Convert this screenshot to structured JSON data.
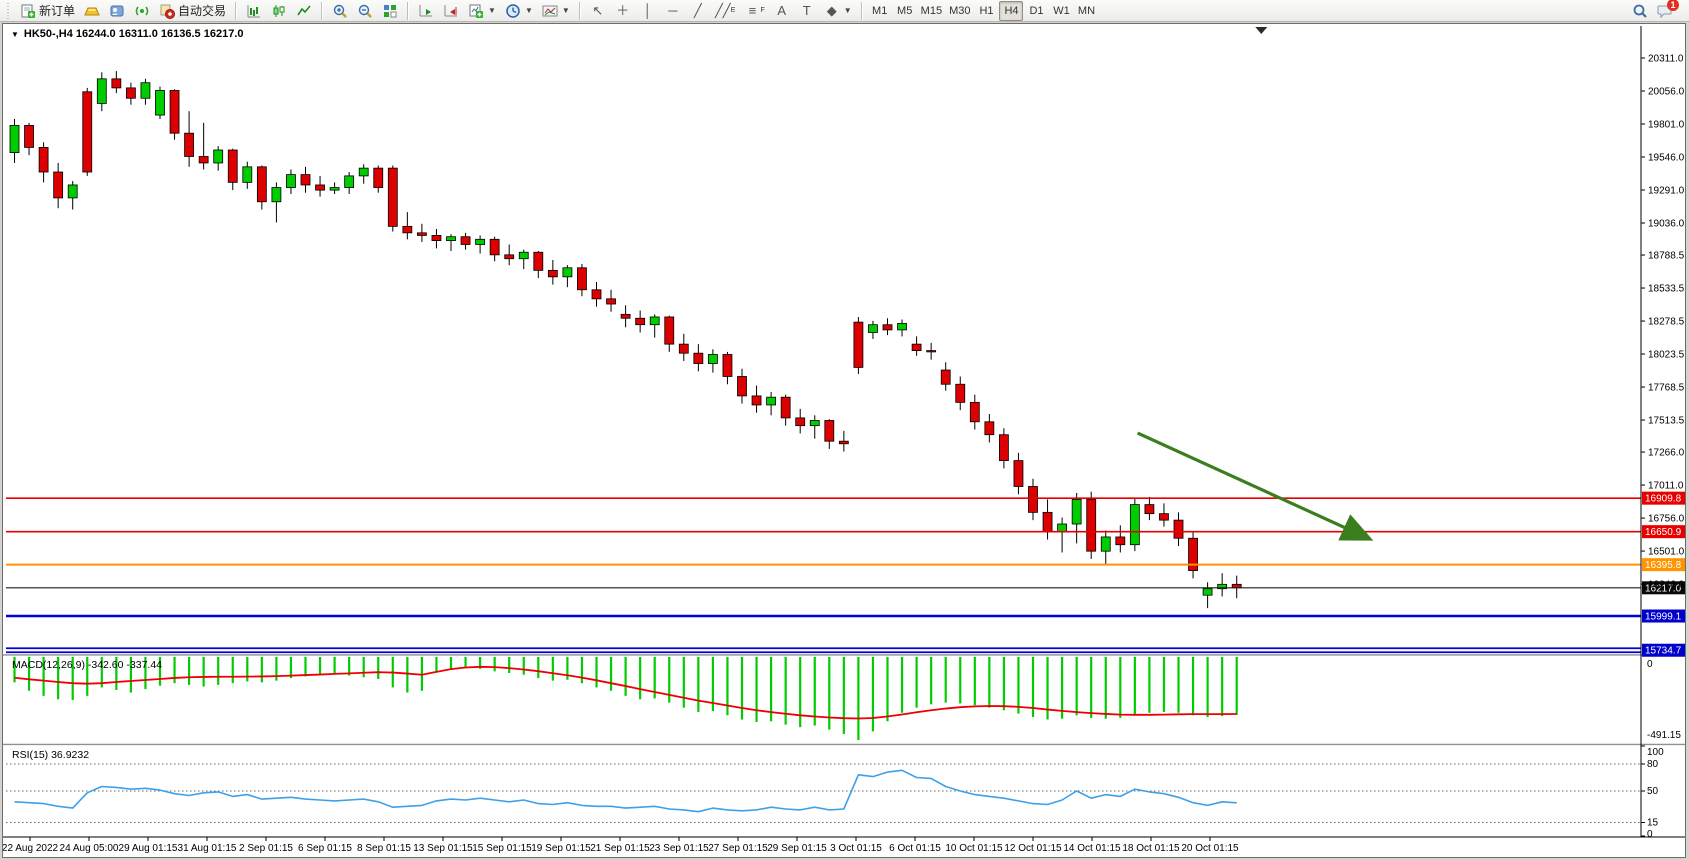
{
  "toolbar": {
    "new_order_label": "新订单",
    "autotrading_label": "自动交易",
    "chat_badge": "1",
    "timeframes": [
      "M1",
      "M5",
      "M15",
      "M30",
      "H1",
      "H4",
      "D1",
      "W1",
      "MN"
    ],
    "active_timeframe": "H4",
    "tools": [
      {
        "name": "cursor",
        "glyph": "↖"
      },
      {
        "name": "crosshair",
        "glyph": "＋"
      },
      {
        "name": "vertical-line",
        "glyph": "│"
      },
      {
        "name": "horizontal-line",
        "glyph": "─"
      },
      {
        "name": "trendline",
        "glyph": "╱"
      },
      {
        "name": "equidistant-channel",
        "glyph": "╱╱",
        "sub": "E"
      },
      {
        "name": "fibonacci",
        "glyph": "≡",
        "sub": "F"
      },
      {
        "name": "text",
        "glyph": "A"
      },
      {
        "name": "text-label",
        "glyph": "T"
      },
      {
        "name": "shapes",
        "glyph": "◆",
        "dropdown": true
      }
    ]
  },
  "chart": {
    "title": "HK50-,H4  16244.0 16311.0 16136.5 16217.0"
  },
  "chart_data": {
    "type": "candlestick",
    "symbol": "HK50-",
    "period": "H4",
    "current_bar": {
      "open": 16244.0,
      "high": 16311.0,
      "low": 16136.5,
      "close": 16217.0
    },
    "price_axis_ticks": [
      "20311.0",
      "20056.0",
      "19801.0",
      "19546.0",
      "19291.0",
      "19036.0",
      "18788.5",
      "18533.5",
      "18278.5",
      "18023.5",
      "17768.5",
      "17513.5",
      "17266.0",
      "17011.0",
      "16756.0",
      "16501.0",
      "16246.0"
    ],
    "candles": [
      [
        19580,
        19840,
        19500,
        19790
      ],
      [
        19790,
        19810,
        19560,
        19620
      ],
      [
        19620,
        19660,
        19350,
        19430
      ],
      [
        19430,
        19500,
        19150,
        19230
      ],
      [
        19230,
        19360,
        19140,
        19330
      ],
      [
        20050,
        20080,
        19400,
        19430
      ],
      [
        19960,
        20200,
        19900,
        20150
      ],
      [
        20150,
        20210,
        20040,
        20080
      ],
      [
        20080,
        20120,
        19950,
        20000
      ],
      [
        20000,
        20150,
        19950,
        20120
      ],
      [
        19870,
        20090,
        19840,
        20060
      ],
      [
        20060,
        20070,
        19680,
        19730
      ],
      [
        19730,
        19900,
        19470,
        19550
      ],
      [
        19550,
        19810,
        19450,
        19500
      ],
      [
        19500,
        19630,
        19440,
        19600
      ],
      [
        19600,
        19610,
        19290,
        19350
      ],
      [
        19350,
        19510,
        19300,
        19470
      ],
      [
        19470,
        19480,
        19140,
        19200
      ],
      [
        19200,
        19350,
        19040,
        19310
      ],
      [
        19310,
        19450,
        19260,
        19410
      ],
      [
        19410,
        19470,
        19270,
        19330
      ],
      [
        19330,
        19400,
        19240,
        19290
      ],
      [
        19290,
        19350,
        19260,
        19310
      ],
      [
        19310,
        19430,
        19260,
        19400
      ],
      [
        19400,
        19490,
        19340,
        19460
      ],
      [
        19460,
        19480,
        19270,
        19310
      ],
      [
        19460,
        19480,
        18970,
        19010
      ],
      [
        19010,
        19120,
        18910,
        18960
      ],
      [
        18960,
        19030,
        18890,
        18940
      ],
      [
        18940,
        18990,
        18840,
        18900
      ],
      [
        18900,
        18950,
        18820,
        18930
      ],
      [
        18930,
        18960,
        18830,
        18870
      ],
      [
        18870,
        18940,
        18800,
        18910
      ],
      [
        18910,
        18930,
        18740,
        18790
      ],
      [
        18790,
        18870,
        18710,
        18760
      ],
      [
        18760,
        18830,
        18680,
        18810
      ],
      [
        18810,
        18820,
        18610,
        18670
      ],
      [
        18670,
        18750,
        18560,
        18620
      ],
      [
        18620,
        18710,
        18540,
        18690
      ],
      [
        18690,
        18720,
        18470,
        18520
      ],
      [
        18520,
        18580,
        18390,
        18450
      ],
      [
        18450,
        18520,
        18350,
        18410
      ],
      [
        18330,
        18400,
        18230,
        18300
      ],
      [
        18300,
        18360,
        18190,
        18250
      ],
      [
        18250,
        18330,
        18150,
        18310
      ],
      [
        18310,
        18320,
        18040,
        18100
      ],
      [
        18100,
        18180,
        17970,
        18030
      ],
      [
        18030,
        18100,
        17890,
        17950
      ],
      [
        17950,
        18060,
        17880,
        18020
      ],
      [
        18020,
        18040,
        17790,
        17850
      ],
      [
        17850,
        17910,
        17640,
        17700
      ],
      [
        17700,
        17780,
        17570,
        17630
      ],
      [
        17630,
        17730,
        17550,
        17690
      ],
      [
        17690,
        17710,
        17470,
        17530
      ],
      [
        17530,
        17600,
        17410,
        17470
      ],
      [
        17470,
        17550,
        17370,
        17510
      ],
      [
        17510,
        17520,
        17290,
        17350
      ],
      [
        17350,
        17430,
        17270,
        17330
      ],
      [
        18270,
        18310,
        17870,
        17920
      ],
      [
        18190,
        18280,
        18140,
        18250
      ],
      [
        18250,
        18300,
        18170,
        18210
      ],
      [
        18210,
        18290,
        18160,
        18260
      ],
      [
        18100,
        18160,
        18010,
        18050
      ],
      [
        18050,
        18110,
        17980,
        18040
      ],
      [
        17900,
        17960,
        17740,
        17790
      ],
      [
        17790,
        17850,
        17590,
        17650
      ],
      [
        17650,
        17710,
        17440,
        17500
      ],
      [
        17500,
        17560,
        17340,
        17400
      ],
      [
        17400,
        17450,
        17140,
        17200
      ],
      [
        17200,
        17260,
        16940,
        17000
      ],
      [
        17000,
        17060,
        16740,
        16800
      ],
      [
        16800,
        16900,
        16590,
        16650
      ],
      [
        16650,
        16760,
        16490,
        16710
      ],
      [
        16710,
        16950,
        16560,
        16900
      ],
      [
        16900,
        16960,
        16440,
        16500
      ],
      [
        16500,
        16660,
        16400,
        16610
      ],
      [
        16610,
        16700,
        16490,
        16550
      ],
      [
        16550,
        16910,
        16500,
        16860
      ],
      [
        16860,
        16920,
        16740,
        16790
      ],
      [
        16790,
        16870,
        16690,
        16740
      ],
      [
        16740,
        16800,
        16540,
        16600
      ],
      [
        16600,
        16650,
        16290,
        16350
      ],
      [
        16160,
        16260,
        16060,
        16210
      ],
      [
        16210,
        16330,
        16150,
        16244
      ],
      [
        16244,
        16311,
        16136.5,
        16217
      ]
    ],
    "hlines": [
      {
        "price": 16909.8,
        "label": "16909.8",
        "color": "#e80000",
        "bg": "#e80000",
        "w": 1.6
      },
      {
        "price": 16650.9,
        "label": "16650.9",
        "color": "#e80000",
        "bg": "#e80000",
        "w": 1.6
      },
      {
        "price": 16395.8,
        "label": "16395.8",
        "color": "#ff9400",
        "bg": "#ff9400",
        "w": 2
      },
      {
        "price": 16217.0,
        "label": "16217.0",
        "color": "#1a1a1a",
        "bg": "#0a0a0a",
        "w": 1.2
      },
      {
        "price": 15999.1,
        "label": "15999.1",
        "color": "#0000e0",
        "bg": "#0000cc",
        "w": 2.4
      },
      {
        "price": 15734.7,
        "label": "15734.7",
        "color": "#0000e0",
        "bg": "#0000cc",
        "w": 1.8,
        "double": true
      }
    ],
    "trend_arrow": {
      "bar_from": 77.5,
      "price_from": 17413,
      "bar_to": 93.3,
      "price_to": 16602,
      "color": "#3b7e1e"
    },
    "shift_marker_bar": 86,
    "macd": {
      "label": "MACD(12,26,9)",
      "value_main": "-342.60",
      "value_signal": "-337.44",
      "scale_zero": "0",
      "scale_min": "-491.15",
      "histogram_color": "#00cd00",
      "signal_color": "#ee0000",
      "histogram": [
        -150,
        -200,
        -230,
        -250,
        -255,
        -230,
        -180,
        -195,
        -210,
        -190,
        -170,
        -155,
        -165,
        -175,
        -165,
        -155,
        -145,
        -150,
        -140,
        -125,
        -115,
        -105,
        -100,
        -110,
        -120,
        -130,
        -180,
        -210,
        -200,
        -90,
        -75,
        -65,
        -70,
        -85,
        -95,
        -105,
        -125,
        -140,
        -135,
        -155,
        -180,
        -200,
        -230,
        -250,
        -245,
        -270,
        -300,
        -325,
        -320,
        -345,
        -370,
        -385,
        -380,
        -400,
        -415,
        -405,
        -430,
        -455,
        -491,
        -440,
        -380,
        -330,
        -300,
        -280,
        -270,
        -275,
        -285,
        -300,
        -315,
        -335,
        -355,
        -370,
        -365,
        -345,
        -360,
        -365,
        -360,
        -340,
        -330,
        -325,
        -330,
        -345,
        -355,
        -350,
        -342.6
      ],
      "signal": [
        -123,
        -132,
        -140,
        -148,
        -155,
        -158,
        -155,
        -148,
        -142,
        -136,
        -130,
        -124,
        -120,
        -118,
        -117,
        -117,
        -116,
        -115,
        -113,
        -110,
        -107,
        -104,
        -100,
        -97,
        -93,
        -90,
        -92,
        -98,
        -105,
        -88,
        -72,
        -62,
        -58,
        -60,
        -66,
        -74,
        -84,
        -96,
        -108,
        -122,
        -138,
        -155,
        -172,
        -190,
        -207,
        -224,
        -241,
        -258,
        -272,
        -287,
        -302,
        -315,
        -326,
        -336,
        -345,
        -352,
        -358,
        -362,
        -364,
        -361,
        -352,
        -340,
        -327,
        -315,
        -305,
        -297,
        -292,
        -290,
        -291,
        -295,
        -302,
        -311,
        -319,
        -326,
        -332,
        -337,
        -341,
        -342,
        -342,
        -341,
        -339,
        -338,
        -338,
        -338,
        -337.44
      ]
    },
    "rsi": {
      "label": "RSI(15)",
      "value": "36.9232",
      "line_color": "#3da0e8",
      "levels": [
        80,
        50,
        15
      ],
      "scale_labels": [
        "100",
        "80",
        "50",
        "15",
        "0"
      ],
      "values": [
        38,
        37,
        36,
        33,
        31,
        48,
        55,
        54,
        52,
        53,
        51,
        47,
        45,
        48,
        49,
        44,
        46,
        41,
        42,
        43,
        41,
        40,
        39,
        40,
        41,
        38,
        32,
        33,
        34,
        39,
        41,
        40,
        42,
        40,
        38,
        40,
        36,
        35,
        37,
        34,
        33,
        33,
        31,
        32,
        33,
        30,
        29,
        27,
        31,
        29,
        28,
        29,
        32,
        30,
        29,
        32,
        29,
        30,
        68,
        66,
        71,
        73,
        65,
        64,
        55,
        50,
        46,
        44,
        42,
        39,
        36,
        35,
        40,
        50,
        42,
        46,
        44,
        52,
        49,
        47,
        43,
        37,
        34,
        38,
        36.92
      ],
      "axis_range": [
        0,
        100
      ]
    },
    "time_axis_labels": [
      "22 Aug 2022",
      "24 Aug 05:00",
      "29 Aug 01:15",
      "31 Aug 01:15",
      "2 Sep 01:15",
      "6 Sep 01:15",
      "8 Sep 01:15",
      "13 Sep 01:15",
      "15 Sep 01:15",
      "19 Sep 01:15",
      "21 Sep 01:15",
      "23 Sep 01:15",
      "27 Sep 01:15",
      "29 Sep 01:15",
      "3 Oct 01:15",
      "6 Oct 01:15",
      "10 Oct 01:15",
      "12 Oct 01:15",
      "14 Oct 01:15",
      "18 Oct 01:15",
      "20 Oct 01:15"
    ]
  }
}
